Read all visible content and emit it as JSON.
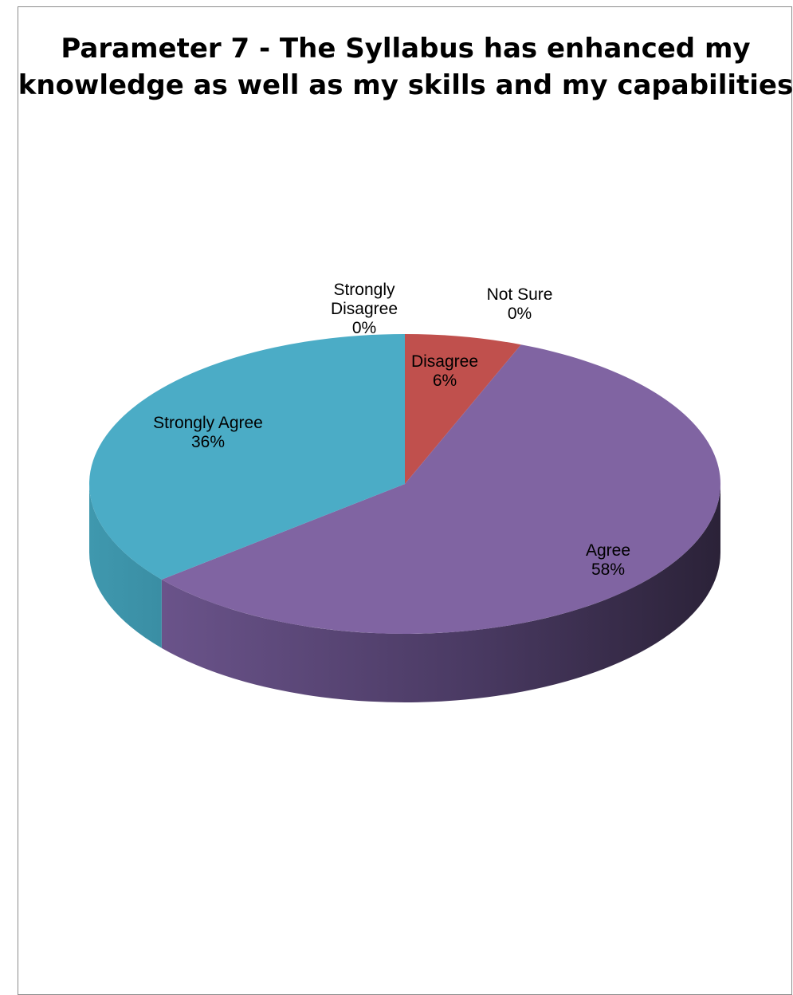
{
  "chart_data": {
    "type": "pie",
    "title_lines": [
      "Parameter 7 - The Syllabus has enhanced my",
      "knowledge as well as my skills and my capabilities"
    ],
    "slices": [
      {
        "label_lines": [
          "Strongly",
          "Disagree"
        ],
        "value_text": "0%",
        "value": 0,
        "color": "#4f81bd"
      },
      {
        "label_lines": [
          "Disagree"
        ],
        "value_text": "6%",
        "value": 6,
        "color": "#c0504d"
      },
      {
        "label_lines": [
          "Not Sure"
        ],
        "value_text": "0%",
        "value": 0,
        "color": "#9bbb59"
      },
      {
        "label_lines": [
          "Agree"
        ],
        "value_text": "58%",
        "value": 58,
        "color": "#8064a2"
      },
      {
        "label_lines": [
          "Strongly Agree"
        ],
        "value_text": "36%",
        "value": 36,
        "color": "#4bacc6"
      }
    ],
    "legend": "none",
    "style": "3d-pie"
  }
}
